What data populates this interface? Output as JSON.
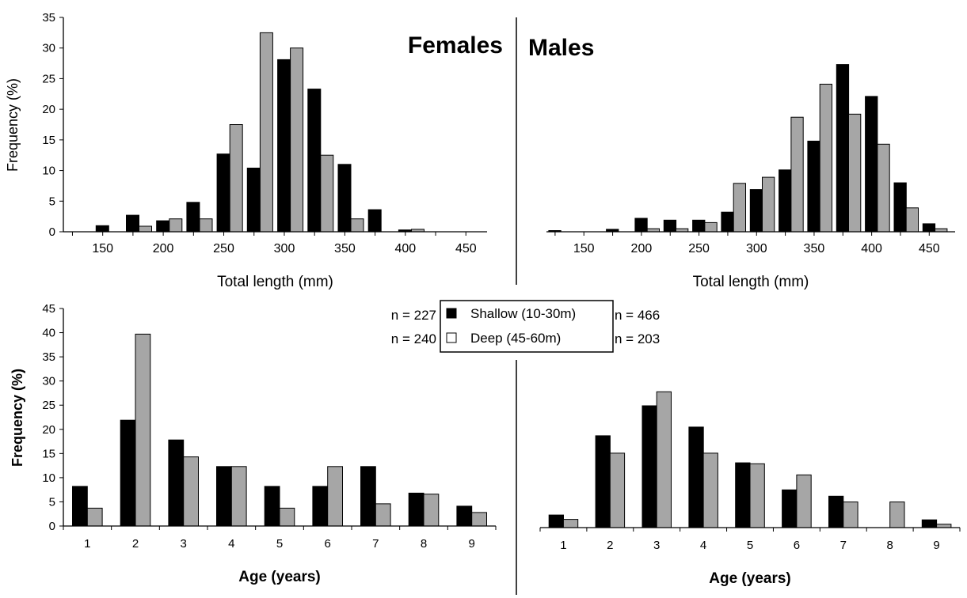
{
  "panel_titles": {
    "females": "Females",
    "males": "Males"
  },
  "legend": {
    "shallow_label": "Shallow (10-30m)",
    "deep_label": "Deep (45-60m)",
    "shallow_color": "#000000",
    "deep_color": "#ffffff"
  },
  "sample_sizes": {
    "females_shallow": "n = 227",
    "females_deep": "n = 240",
    "males_shallow": "n = 466",
    "males_deep": "n = 203"
  },
  "colors": {
    "shallow_fill": "#000000",
    "deep_fill": "#a6a6a6",
    "axis": "#000000"
  },
  "chart_data": [
    {
      "id": "females-length",
      "type": "bar",
      "xlabel": "Total length (mm)",
      "ylabel": "Frequency (%)",
      "ylim": [
        0,
        35
      ],
      "yticks": [
        0,
        5,
        10,
        15,
        20,
        25,
        30,
        35
      ],
      "xticks": [
        150,
        200,
        250,
        300,
        350,
        400,
        450
      ],
      "categories": [
        130,
        155,
        180,
        205,
        230,
        255,
        280,
        305,
        330,
        355,
        380,
        405,
        430,
        455
      ],
      "series": [
        {
          "name": "Shallow (10-30m)",
          "values": [
            0,
            1.0,
            2.7,
            1.8,
            4.8,
            12.7,
            10.4,
            28.1,
            23.3,
            11.0,
            3.6,
            0.3,
            0,
            0
          ]
        },
        {
          "name": "Deep (45-60m)",
          "values": [
            0,
            0,
            0.9,
            2.1,
            2.1,
            17.5,
            32.5,
            30.0,
            12.5,
            2.1,
            0,
            0.4,
            0,
            0
          ]
        }
      ]
    },
    {
      "id": "males-length",
      "type": "bar",
      "xlabel": "Total length (mm)",
      "ylabel": "",
      "ylim": [
        0,
        35
      ],
      "yticks": [],
      "xticks": [
        150,
        200,
        250,
        300,
        350,
        400,
        450
      ],
      "categories": [
        130,
        155,
        180,
        205,
        230,
        255,
        280,
        305,
        330,
        355,
        380,
        405,
        430,
        455
      ],
      "series": [
        {
          "name": "Shallow (10-30m)",
          "values": [
            0.2,
            0,
            0.4,
            2.2,
            1.9,
            1.9,
            3.2,
            6.9,
            10.1,
            14.8,
            27.3,
            22.1,
            8.0,
            1.3
          ]
        },
        {
          "name": "Deep (45-60m)",
          "values": [
            0,
            0,
            0,
            0.5,
            0.5,
            1.5,
            7.9,
            8.9,
            18.7,
            24.1,
            19.2,
            14.3,
            3.9,
            0.5
          ]
        }
      ]
    },
    {
      "id": "females-age",
      "type": "bar",
      "xlabel": "Age (years)",
      "ylabel": "Frequency (%)",
      "ylim": [
        0,
        45
      ],
      "yticks": [
        0,
        5,
        10,
        15,
        20,
        25,
        30,
        35,
        40,
        45
      ],
      "categories": [
        1,
        2,
        3,
        4,
        5,
        6,
        7,
        8,
        9
      ],
      "series": [
        {
          "name": "Shallow (10-30m)",
          "values": [
            8.2,
            21.9,
            17.8,
            12.3,
            8.2,
            8.2,
            12.3,
            6.8,
            4.1
          ]
        },
        {
          "name": "Deep (45-60m)",
          "values": [
            3.7,
            39.7,
            14.3,
            12.3,
            3.7,
            12.3,
            4.6,
            6.6,
            2.8
          ]
        }
      ]
    },
    {
      "id": "males-age",
      "type": "bar",
      "xlabel": "Age (years)",
      "ylabel": "",
      "ylim": [
        0,
        45
      ],
      "yticks": [],
      "categories": [
        1,
        2,
        3,
        4,
        5,
        6,
        7,
        8,
        9
      ],
      "series": [
        {
          "name": "Shallow (10-30m)",
          "values": [
            2.6,
            19.0,
            25.2,
            20.8,
            13.4,
            7.8,
            6.5,
            0,
            1.6
          ]
        },
        {
          "name": "Deep (45-60m)",
          "values": [
            1.7,
            15.4,
            28.1,
            15.4,
            13.2,
            10.9,
            5.3,
            5.3,
            0.7
          ]
        }
      ]
    }
  ]
}
